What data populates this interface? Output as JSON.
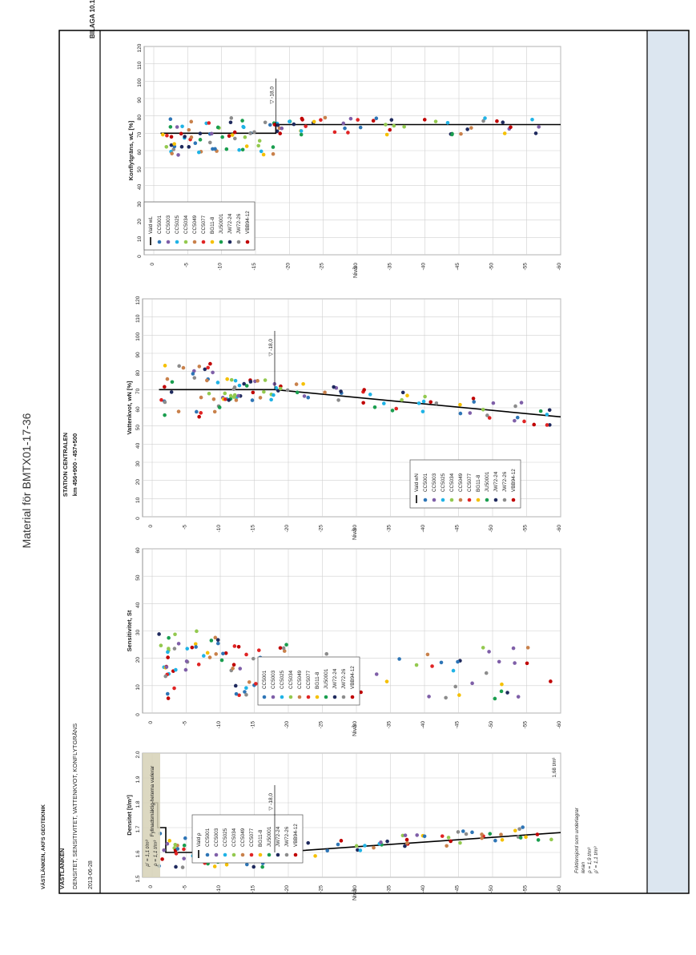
{
  "page": {
    "watermark": "Material för BMTX01-17-36",
    "company": "VÄSTLÄNKEN, AKFS GEOTEKNIK",
    "project": "VÄSTLÄNKEN",
    "subject": "DENSITET, SENSITIVITET, VATTENKVOT, KONFLYTGRÄNS",
    "date": "2013-06-28",
    "station": "STATION CENTRALEN",
    "km": "km 456+900 - 457+500",
    "bilaga": "BILAGA 10.1.1"
  },
  "colors": {
    "CC5001": "#2e75b6",
    "CC5003": "#7f5fa8",
    "CC5025": "#1fb3e6",
    "CC5034": "#93c94f",
    "CC5049": "#c9814b",
    "CC5077": "#e02424",
    "BG11-8": "#f5c000",
    "JU50001": "#1a9e4f",
    "JW72-24": "#1f2a5e",
    "JW72-26": "#8c8c8c",
    "VBB94-12": "#c00000",
    "accent_panel": "#dce6f0",
    "fill_band": "#d6d1b6"
  },
  "chart_data": [
    {
      "id": "density",
      "type": "scatter",
      "ylabel": "Densitet [t/m³]",
      "xlabel": "Nivå",
      "ylim": [
        1.5,
        2.0
      ],
      "xlim": [
        0,
        -60
      ],
      "yticks": [
        "1.5",
        "1.6",
        "1.7",
        "1.8",
        "1.9",
        "2.0"
      ],
      "xticks": [
        "0",
        "-5",
        "-10",
        "-15",
        "-20",
        "-25",
        "-30",
        "-35",
        "-40",
        "-45",
        "-50",
        "-55",
        "-60"
      ],
      "grid": true,
      "legend_placement": "top-center",
      "legend": [
        "Vald ρ",
        "CC5001",
        "CC5003",
        "CC5025",
        "CC5034",
        "CC5049",
        "CC5077",
        "BG11-8",
        "JU50001",
        "JW72-24",
        "JW72-26",
        "VBB94-12"
      ],
      "annotations": {
        "fill_note": "Fyllnadsmäktig-heterna varierar",
        "rho_fill_1": "ρ' = 1,1 t/m³",
        "rho_fill_2": "ρ = 1,1 t/m³",
        "level_marker": "-18,0",
        "end_value": "1,68 t/m³",
        "friction_note_1": "Friktionsjord som underlagrar",
        "friction_note_2": "leran",
        "friction_note_3": "ρ = 1,9 t/m³",
        "friction_note_4": "ρ' = 1,1 t/m³"
      },
      "line": [
        [
          0,
          1.8
        ],
        [
          0.8,
          1.8
        ],
        [
          0.8,
          1.7
        ],
        [
          2,
          1.7
        ],
        [
          2,
          1.6
        ],
        [
          18,
          1.6
        ],
        [
          60,
          1.68
        ]
      ],
      "seed": 11
    },
    {
      "id": "sensitivity",
      "type": "scatter",
      "ylabel": "Sensitivitet, St",
      "xlabel": "Nivå",
      "ylim": [
        0,
        60
      ],
      "xlim": [
        0,
        -60
      ],
      "yticks": [
        "0",
        "10",
        "20",
        "30",
        "40",
        "50",
        "60"
      ],
      "xticks": [
        "0",
        "-5",
        "-10",
        "-15",
        "-20",
        "-25",
        "-30",
        "-35",
        "-40",
        "-45",
        "-50",
        "-55",
        "-60"
      ],
      "grid": true,
      "legend_placement": "top-center",
      "legend": [
        "CC5001",
        "CC5003",
        "CC5025",
        "CC5034",
        "CC5049",
        "CC5077",
        "BG11-8",
        "JU50001",
        "JW72-24",
        "JW72-26",
        "VBB94-12"
      ],
      "seed": 23
    },
    {
      "id": "water",
      "type": "scatter",
      "ylabel": "Vattenkvot, wN [%]",
      "xlabel": "Nivå",
      "ylim": [
        0,
        120
      ],
      "xlim": [
        0,
        -60
      ],
      "yticks": [
        "0",
        "10",
        "20",
        "30",
        "40",
        "50",
        "60",
        "70",
        "80",
        "90",
        "100",
        "110",
        "120"
      ],
      "xticks": [
        "0",
        "-5",
        "-10",
        "-15",
        "-20",
        "-25",
        "-30",
        "-35",
        "-40",
        "-45",
        "-50",
        "-55",
        "-60"
      ],
      "grid": true,
      "legend_placement": "bottom-right",
      "legend": [
        "Vald wN",
        "CC5001",
        "CC5003",
        "CC5025",
        "CC5034",
        "CC5049",
        "CC5077",
        "BG11-8",
        "JU50001",
        "JW72-24",
        "JW72-26",
        "VBB94-12"
      ],
      "annotations": {
        "level_marker": "-18,0"
      },
      "line": [
        [
          1,
          70
        ],
        [
          18,
          70
        ],
        [
          60,
          55
        ]
      ],
      "seed": 37
    },
    {
      "id": "liquid_limit",
      "type": "scatter",
      "ylabel": "Konflytgräns, wL [%]",
      "xlabel": "Nivå",
      "ylim": [
        0,
        120
      ],
      "xlim": [
        0,
        -60
      ],
      "yticks": [
        "0",
        "10",
        "20",
        "30",
        "40",
        "50",
        "60",
        "70",
        "80",
        "90",
        "100",
        "110",
        "120"
      ],
      "xticks": [
        "0",
        "-5",
        "-10",
        "-15",
        "-20",
        "-25",
        "-30",
        "-35",
        "-40",
        "-45",
        "-50",
        "-55",
        "-60"
      ],
      "grid": true,
      "legend_placement": "bottom-left",
      "legend": [
        "Vald wL",
        "CC5001",
        "CC5003",
        "CC5025",
        "CC5034",
        "CC5049",
        "CC5077",
        "BG11-8",
        "JU50001",
        "JW72-24",
        "JW72-26",
        "VBB94-12"
      ],
      "annotations": {
        "level_marker": "-18,0"
      },
      "line": [
        [
          1,
          70
        ],
        [
          18,
          70
        ],
        [
          18,
          75
        ],
        [
          60,
          75
        ]
      ],
      "seed": 53
    }
  ]
}
